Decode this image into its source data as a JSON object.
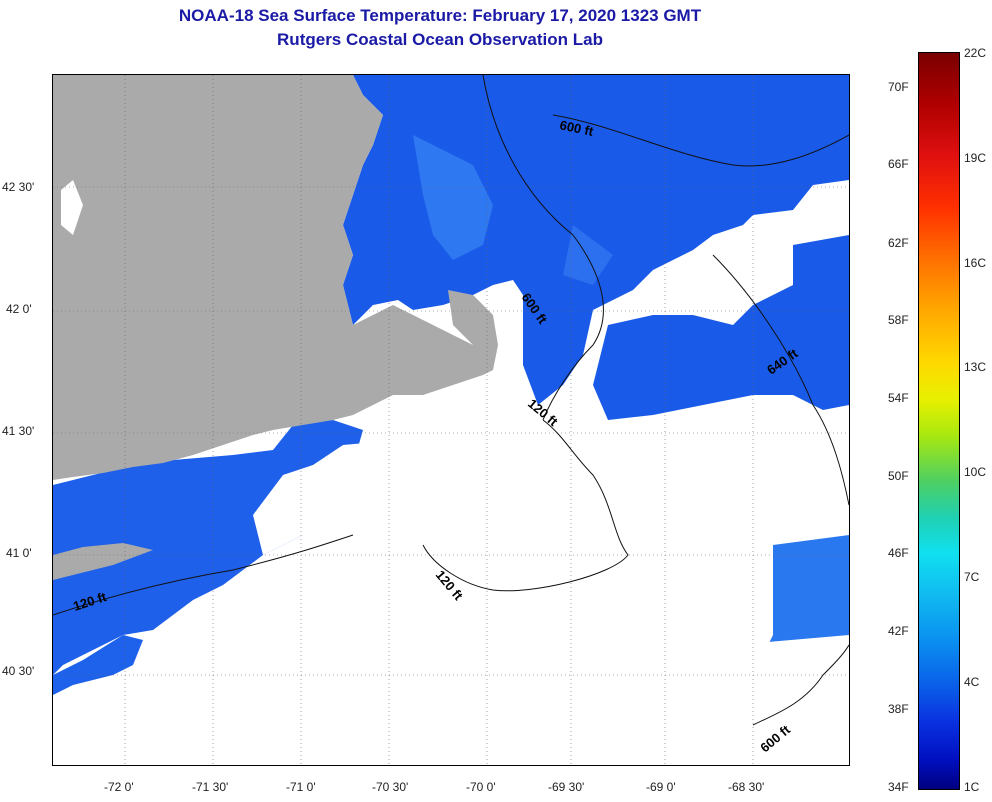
{
  "header": {
    "title_line1": "NOAA-18 Sea Surface Temperature:  February 17, 2020 1323 GMT",
    "title_line2": "Rutgers Coastal Ocean Observation Lab"
  },
  "map": {
    "lat_labels": [
      "42 30'",
      "42 0'",
      "41 30'",
      "41 0'",
      "40 30'"
    ],
    "lon_labels": [
      "-72 0'",
      "-71 30'",
      "-71 0'",
      "-70 30'",
      "-70 0'",
      "-69 30'",
      "-69 0'",
      "-68 30'"
    ],
    "contour_labels": [
      "600 ft",
      "600 ft",
      "120 ft",
      "640 ft",
      "120 ft",
      "120 ft",
      "600 ft"
    ],
    "colors": {
      "land": "#aaaaaa",
      "ocean_cold": "#1450e8",
      "ocean_mid": "#2a6cf0",
      "cloud": "#ffffff"
    }
  },
  "colorbar": {
    "f_labels": [
      "70F",
      "66F",
      "62F",
      "58F",
      "54F",
      "50F",
      "46F",
      "42F",
      "38F",
      "34F"
    ],
    "c_labels": [
      "22C",
      "19C",
      "16C",
      "13C",
      "10C",
      "7C",
      "4C",
      "1C"
    ]
  }
}
